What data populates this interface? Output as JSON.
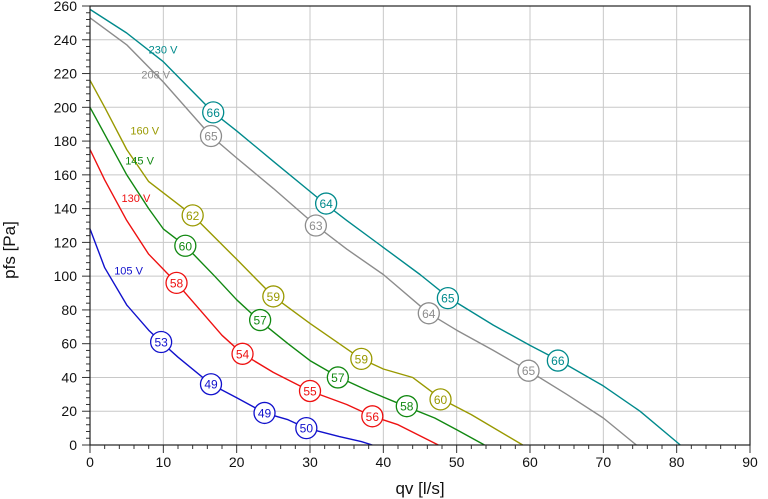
{
  "chart_data": {
    "type": "line",
    "xlabel": "qv [l/s]",
    "ylabel": "pfs [Pa]",
    "xlim": [
      0,
      90
    ],
    "ylim": [
      0,
      260
    ],
    "x_ticks": [
      0,
      10,
      20,
      30,
      40,
      50,
      60,
      70,
      80,
      90
    ],
    "y_ticks": [
      0,
      20,
      40,
      60,
      80,
      100,
      120,
      140,
      160,
      180,
      200,
      220,
      240,
      260
    ],
    "grid": true,
    "series": [
      {
        "name": "230 V",
        "color": "#008a8c",
        "label_at": [
          8,
          232
        ],
        "points": [
          [
            0,
            258
          ],
          [
            5,
            244
          ],
          [
            10,
            227
          ],
          [
            16.8,
            197
          ],
          [
            20,
            186
          ],
          [
            25,
            168
          ],
          [
            32,
            143
          ],
          [
            35,
            133
          ],
          [
            40,
            117
          ],
          [
            45,
            101
          ],
          [
            49,
            87
          ],
          [
            55,
            71
          ],
          [
            60,
            59
          ],
          [
            64,
            50
          ],
          [
            70,
            35
          ],
          [
            75,
            20
          ],
          [
            80.5,
            0
          ]
        ],
        "markers": [
          {
            "x": 16.8,
            "y": 197,
            "label": "66"
          },
          {
            "x": 32.2,
            "y": 143,
            "label": "64"
          },
          {
            "x": 48.8,
            "y": 87,
            "label": "65"
          },
          {
            "x": 63.8,
            "y": 50,
            "label": "66"
          }
        ]
      },
      {
        "name": "208 V",
        "color": "#8c8c8c",
        "label_at": [
          7,
          217
        ],
        "points": [
          [
            0,
            253
          ],
          [
            5,
            237
          ],
          [
            10,
            215
          ],
          [
            16.5,
            183
          ],
          [
            20,
            170
          ],
          [
            25,
            152
          ],
          [
            30.8,
            130
          ],
          [
            35,
            116
          ],
          [
            40,
            101
          ],
          [
            46.2,
            78
          ],
          [
            50,
            68
          ],
          [
            55,
            56
          ],
          [
            59.8,
            44
          ],
          [
            65,
            30
          ],
          [
            70,
            16
          ],
          [
            74.5,
            0
          ]
        ],
        "markers": [
          {
            "x": 16.5,
            "y": 183,
            "label": "65"
          },
          {
            "x": 30.8,
            "y": 130,
            "label": "63"
          },
          {
            "x": 46.2,
            "y": 78,
            "label": "64"
          },
          {
            "x": 59.8,
            "y": 44,
            "label": "65"
          }
        ]
      },
      {
        "name": "160 V",
        "color": "#999900",
        "label_at": [
          5.5,
          184
        ],
        "points": [
          [
            0,
            216
          ],
          [
            2,
            200
          ],
          [
            5,
            175
          ],
          [
            8,
            156
          ],
          [
            14,
            136
          ],
          [
            20,
            110
          ],
          [
            25,
            88
          ],
          [
            30,
            72
          ],
          [
            37,
            51
          ],
          [
            40,
            45
          ],
          [
            44,
            40
          ],
          [
            48,
            27
          ],
          [
            52,
            18
          ],
          [
            59,
            0
          ]
        ],
        "markers": [
          {
            "x": 14,
            "y": 136,
            "label": "62"
          },
          {
            "x": 25,
            "y": 88,
            "label": "59"
          },
          {
            "x": 37,
            "y": 51,
            "label": "59"
          },
          {
            "x": 47.8,
            "y": 27,
            "label": "60"
          }
        ]
      },
      {
        "name": "145 V",
        "color": "#118811",
        "label_at": [
          4.8,
          166
        ],
        "points": [
          [
            0,
            200
          ],
          [
            2,
            184
          ],
          [
            5,
            160
          ],
          [
            8,
            140
          ],
          [
            10,
            128
          ],
          [
            13,
            118
          ],
          [
            17,
            100
          ],
          [
            20,
            86
          ],
          [
            23,
            74
          ],
          [
            27,
            60
          ],
          [
            30,
            50
          ],
          [
            34,
            40
          ],
          [
            38,
            32
          ],
          [
            43,
            23
          ],
          [
            47,
            16
          ],
          [
            50,
            9
          ],
          [
            53.8,
            0
          ]
        ],
        "markers": [
          {
            "x": 13,
            "y": 118,
            "label": "60"
          },
          {
            "x": 23.2,
            "y": 74,
            "label": "57"
          },
          {
            "x": 33.8,
            "y": 40,
            "label": "57"
          },
          {
            "x": 43.2,
            "y": 23,
            "label": "58"
          }
        ]
      },
      {
        "name": "130 V",
        "color": "#ee1111",
        "label_at": [
          4.3,
          144
        ],
        "points": [
          [
            0,
            175
          ],
          [
            2,
            157
          ],
          [
            5,
            133
          ],
          [
            8,
            113
          ],
          [
            11.8,
            96
          ],
          [
            15,
            80
          ],
          [
            18,
            65
          ],
          [
            20.8,
            54
          ],
          [
            25,
            43
          ],
          [
            30,
            32
          ],
          [
            35,
            24
          ],
          [
            38.5,
            17
          ],
          [
            42,
            12
          ],
          [
            47.5,
            0
          ]
        ],
        "markers": [
          {
            "x": 11.8,
            "y": 96,
            "label": "58"
          },
          {
            "x": 20.8,
            "y": 54,
            "label": "54"
          },
          {
            "x": 30,
            "y": 32,
            "label": "55"
          },
          {
            "x": 38.5,
            "y": 17,
            "label": "56"
          }
        ]
      },
      {
        "name": "105 V",
        "color": "#1111cc",
        "label_at": [
          3.3,
          101
        ],
        "points": [
          [
            0,
            128
          ],
          [
            2,
            105
          ],
          [
            5,
            83
          ],
          [
            8,
            68
          ],
          [
            9.7,
            61
          ],
          [
            12,
            52
          ],
          [
            16.5,
            36
          ],
          [
            20,
            28
          ],
          [
            23.8,
            19
          ],
          [
            27,
            15
          ],
          [
            29.5,
            10
          ],
          [
            34,
            5
          ],
          [
            37,
            2
          ],
          [
            38.5,
            0
          ]
        ],
        "markers": [
          {
            "x": 9.7,
            "y": 61,
            "label": "53"
          },
          {
            "x": 16.5,
            "y": 36,
            "label": "49"
          },
          {
            "x": 23.8,
            "y": 19,
            "label": "49"
          },
          {
            "x": 29.5,
            "y": 10,
            "label": "50"
          }
        ]
      }
    ]
  }
}
